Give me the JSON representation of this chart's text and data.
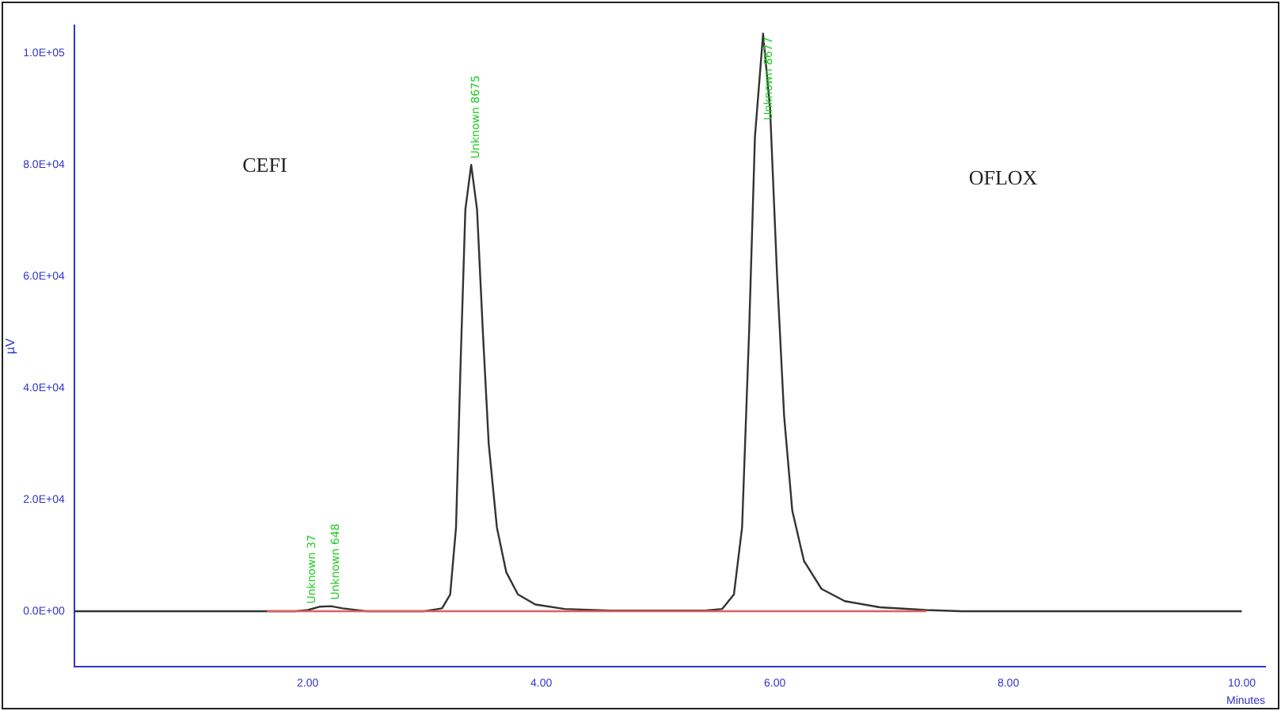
{
  "chart_data": {
    "type": "line",
    "xlabel": "Minutes",
    "ylabel": "µV",
    "xlim": [
      0,
      10.2
    ],
    "ylim": [
      -10000,
      105000
    ],
    "xticks": [
      {
        "value": 2,
        "label": "2.00"
      },
      {
        "value": 4,
        "label": "4.00"
      },
      {
        "value": 6,
        "label": "6.00"
      },
      {
        "value": 8,
        "label": "8.00"
      },
      {
        "value": 10,
        "label": "10.00"
      }
    ],
    "yticks": [
      {
        "value": 0,
        "label": "0.0E+00"
      },
      {
        "value": 20000,
        "label": "2.0E+04"
      },
      {
        "value": 40000,
        "label": "4.0E+04"
      },
      {
        "value": 60000,
        "label": "6.0E+04"
      },
      {
        "value": 80000,
        "label": "8.0E+04"
      },
      {
        "value": 100000,
        "label": "1.0E+05"
      }
    ],
    "grid": false,
    "legend": false,
    "marker": "none",
    "line_style": "solid",
    "series": [
      {
        "color": "#333333",
        "x": [
          0,
          1.6,
          1.9,
          2.0,
          2.1,
          2.2,
          2.3,
          2.5,
          3.0,
          3.15,
          3.22,
          3.27,
          3.31,
          3.35,
          3.4,
          3.45,
          3.5,
          3.55,
          3.62,
          3.7,
          3.8,
          3.95,
          4.2,
          4.6,
          5.0,
          5.4,
          5.55,
          5.65,
          5.72,
          5.78,
          5.83,
          5.9,
          5.96,
          6.02,
          6.08,
          6.15,
          6.25,
          6.4,
          6.6,
          6.9,
          7.3,
          7.6,
          10.0
        ],
        "values": [
          0,
          0,
          0,
          200,
          800,
          900,
          500,
          0,
          0,
          500,
          3000,
          15000,
          45000,
          72000,
          80000,
          72000,
          50000,
          30000,
          15000,
          7000,
          3000,
          1200,
          400,
          100,
          100,
          100,
          400,
          3000,
          15000,
          50000,
          85000,
          103500,
          90000,
          60000,
          35000,
          18000,
          9000,
          4000,
          1800,
          700,
          200,
          0,
          0
        ]
      },
      {
        "color": "#e06060",
        "x": [
          1.65,
          7.3
        ],
        "values": [
          0,
          0
        ]
      }
    ],
    "annotations": [
      "CEFI",
      "OFLOX",
      {
        "text": "Unknown 37",
        "x": 2.0,
        "y": 200
      },
      {
        "text": "Unknown 648",
        "x": 2.2,
        "y": 900
      },
      {
        "text": "Unknown 8675",
        "x": 3.4,
        "y": 80000
      },
      {
        "text": "Unknown 8677",
        "x": 5.9,
        "y": 103500
      }
    ]
  }
}
